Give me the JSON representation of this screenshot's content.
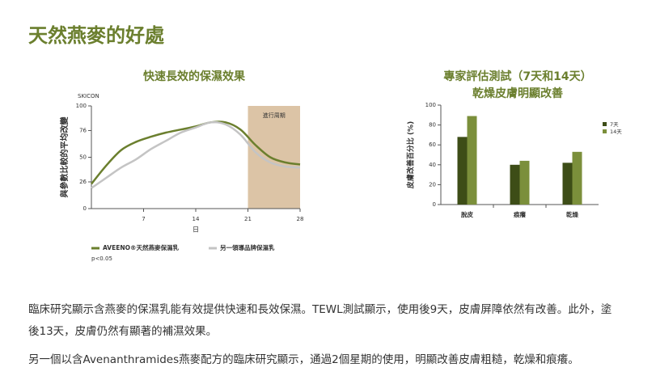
{
  "heading": "天然燕麥的好處",
  "chart_data": [
    {
      "type": "line",
      "title": "快速長效的保濕效果",
      "y_unit_label": "SKICON",
      "ylabel": "與參數比較的平均改變",
      "xlabel": "日",
      "x": [
        0,
        2,
        4,
        6,
        8,
        10,
        12,
        14,
        16,
        18,
        20,
        22,
        24,
        26,
        28
      ],
      "series": [
        {
          "name": "AVEENO®天然燕麥保濕乳",
          "color": "#6b7f2e",
          "values": [
            24,
            42,
            57,
            65,
            70,
            74,
            77,
            80,
            84,
            84,
            77,
            62,
            50,
            45,
            43
          ]
        },
        {
          "name": "另一領導品牌保濕乳",
          "color": "#c4c4c4",
          "values": [
            20,
            30,
            40,
            48,
            58,
            66,
            74,
            79,
            84,
            82,
            72,
            55,
            45,
            41,
            40
          ]
        }
      ],
      "xlim": [
        0,
        28
      ],
      "xticks": [
        7,
        14,
        21,
        28
      ],
      "ylim": [
        0,
        100
      ],
      "yticks": [
        0,
        26,
        50,
        76,
        100
      ],
      "shaded": {
        "range": [
          21,
          28
        ],
        "label": "進行周期",
        "color": "#dcc4a6"
      },
      "note": "p<0.05"
    },
    {
      "type": "bar",
      "title": "專家評估測試（7天和14天）",
      "subtitle": "乾燥皮膚明顯改善",
      "ylabel": "皮膚改善百分比 (%)",
      "categories": [
        "脫皮",
        "痕癢",
        "乾燥"
      ],
      "series": [
        {
          "name": "7天",
          "color": "#3d4d17",
          "values": [
            68,
            40,
            42
          ]
        },
        {
          "name": "14天",
          "color": "#7b8f3b",
          "values": [
            89,
            44,
            53
          ]
        }
      ],
      "ylim": [
        0,
        100
      ],
      "yticks": [
        0,
        20,
        40,
        60,
        80,
        100
      ]
    }
  ],
  "paragraphs": [
    "臨床研究顯示含燕麥的保濕乳能有效提供快速和長效保濕。TEWL測試顯示，使用後9天，皮膚屏障依然有改善。此外，塗後13天，皮膚仍然有顯著的補濕效果。",
    "另一個以含Avenanthramides燕麥配方的臨床研究顯示，通過2個星期的使用，明顯改善皮膚粗糙，乾燥和痕癢。"
  ]
}
